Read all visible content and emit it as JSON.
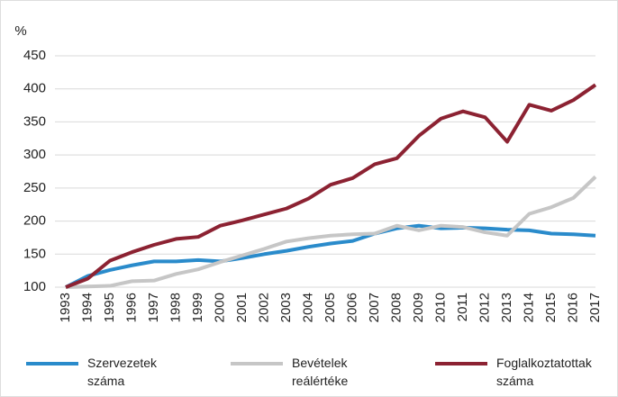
{
  "chart_data": {
    "type": "line",
    "y_label": "%",
    "categories": [
      "1993",
      "1994",
      "1995",
      "1996",
      "1997",
      "1998",
      "1999",
      "2000",
      "2001",
      "2002",
      "2003",
      "2004",
      "2005",
      "2006",
      "2007",
      "2008",
      "2009",
      "2010",
      "2011",
      "2012",
      "2013",
      "2014",
      "2015",
      "2016",
      "2017"
    ],
    "series": [
      {
        "name": "Szervezetek száma",
        "color": "#2a8bcb",
        "values": [
          100,
          117,
          126,
          133,
          139,
          139,
          141,
          139,
          144,
          150,
          155,
          161,
          166,
          170,
          181,
          189,
          193,
          189,
          190,
          189,
          187,
          186,
          181,
          180,
          178
        ]
      },
      {
        "name": "Bevételek reálértéke",
        "color": "#c6c6c6",
        "values": [
          100,
          101,
          102,
          109,
          110,
          120,
          127,
          138,
          148,
          158,
          169,
          174,
          178,
          180,
          181,
          193,
          186,
          193,
          191,
          183,
          178,
          211,
          221,
          235,
          267
        ]
      },
      {
        "name": "Foglalkoztatottak száma",
        "color": "#8c2232",
        "values": [
          100,
          113,
          140,
          153,
          164,
          173,
          176,
          193,
          201,
          210,
          219,
          234,
          255,
          265,
          286,
          295,
          329,
          355,
          366,
          357,
          320,
          376,
          367,
          383,
          406
        ]
      }
    ],
    "ylim": [
      100,
      450
    ],
    "yticks": [
      100,
      150,
      200,
      250,
      300,
      350,
      400,
      450
    ],
    "grid": true
  }
}
